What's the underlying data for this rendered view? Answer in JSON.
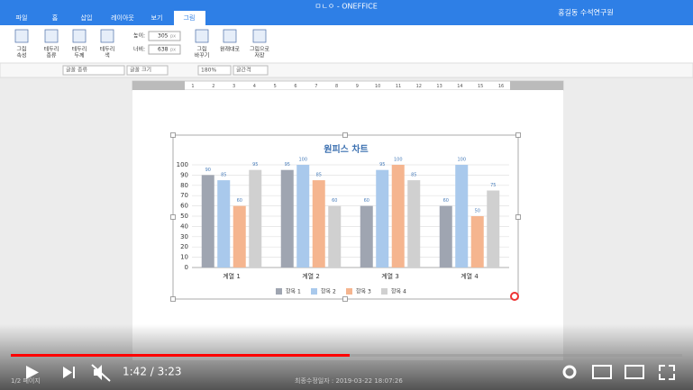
{
  "app": {
    "title": "ㅁㄴㅇ - ONEFFICE",
    "user": "홍길동 수석연구원",
    "tabs": [
      "파일",
      "홈",
      "삽입",
      "레이아웃",
      "보기",
      "그림"
    ]
  },
  "ribbon": {
    "buttons": [
      [
        "그림",
        "속성"
      ],
      [
        "테두리",
        "종류"
      ],
      [
        "테두리",
        "두께"
      ],
      [
        "테두리",
        "색"
      ]
    ],
    "height_label": "높이:",
    "height": "305",
    "width_label": "너비:",
    "width": "638",
    "unit": "px",
    "buttons2": [
      [
        "그림",
        "바꾸기"
      ],
      [
        "원래대로"
      ],
      [
        "그림으로",
        "저장"
      ]
    ]
  },
  "toolbar": {
    "font": "글꼴 종류",
    "size": "글꼴 크기",
    "line_spacing": "180%",
    "letter_spacing": "글간격"
  },
  "ruler": [
    "1",
    "2",
    "3",
    "4",
    "5",
    "6",
    "7",
    "8",
    "9",
    "10",
    "11",
    "12",
    "13",
    "14",
    "15",
    "16"
  ],
  "chart_data": {
    "type": "bar",
    "title": "원피스 차트",
    "categories": [
      "계열 1",
      "계열 2",
      "계열 3",
      "계열 4"
    ],
    "series": [
      {
        "name": "항목 1",
        "color": "#9fa5b1",
        "values": [
          90,
          95,
          60,
          60
        ]
      },
      {
        "name": "항목 2",
        "color": "#a9c9ec",
        "values": [
          85,
          100,
          95,
          100
        ]
      },
      {
        "name": "항목 3",
        "color": "#f5b58f",
        "values": [
          60,
          85,
          100,
          50
        ]
      },
      {
        "name": "항목 4",
        "color": "#d0d0d0",
        "values": [
          95,
          60,
          85,
          75
        ]
      }
    ],
    "ylim": [
      0,
      100
    ],
    "yticks": [
      0,
      10,
      20,
      30,
      40,
      50,
      60,
      70,
      80,
      90,
      100
    ],
    "grid": true,
    "legend": "bottom"
  },
  "status": {
    "page": "1/2 페이지",
    "modified": "최종수정일자 : 2019-03-22 18:07:26"
  },
  "player": {
    "time": "1:42 / 3:23"
  }
}
